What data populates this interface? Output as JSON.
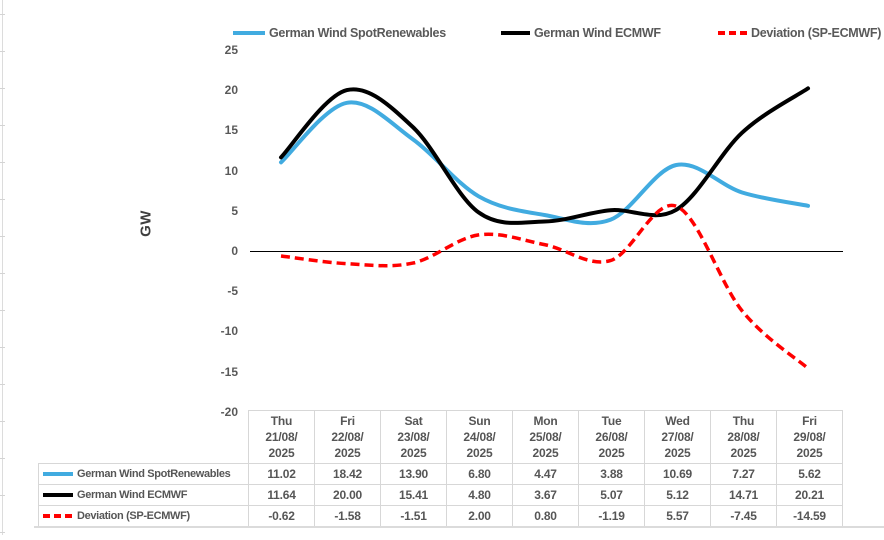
{
  "chart_data": {
    "type": "line",
    "title": "",
    "ylabel": "GW",
    "ylim": [
      -20,
      25
    ],
    "yticks": [
      25,
      20,
      15,
      10,
      5,
      0,
      -5,
      -10,
      -15,
      -20
    ],
    "grid": false,
    "legend_position": "top",
    "line_style_note": "smoothed lines",
    "categories": [
      [
        "Thu",
        "21/08/",
        "2025"
      ],
      [
        "Fri",
        "22/08/",
        "2025"
      ],
      [
        "Sat",
        "23/08/",
        "2025"
      ],
      [
        "Sun",
        "24/08/",
        "2025"
      ],
      [
        "Mon",
        "25/08/",
        "2025"
      ],
      [
        "Tue",
        "26/08/",
        "2025"
      ],
      [
        "Wed",
        "27/08/",
        "2025"
      ],
      [
        "Thu",
        "28/08/",
        "2025"
      ],
      [
        "Fri",
        "29/08/",
        "2025"
      ]
    ],
    "series": [
      {
        "name": "German Wind SpotRenewables",
        "color": "#41ABE0",
        "style": "solid",
        "values": [
          "11.02",
          "18.42",
          "13.90",
          "6.80",
          "4.47",
          "3.88",
          "10.69",
          "7.27",
          "5.62"
        ]
      },
      {
        "name": "German Wind ECMWF",
        "color": "#000000",
        "style": "solid",
        "values": [
          "11.64",
          "20.00",
          "15.41",
          "4.80",
          "3.67",
          "5.07",
          "5.12",
          "14.71",
          "20.21"
        ]
      },
      {
        "name": "Deviation (SP-ECMWF)",
        "color": "#FF0000",
        "style": "dashed",
        "values": [
          "-0.62",
          "-1.58",
          "-1.51",
          "2.00",
          "0.80",
          "-1.19",
          "5.57",
          "-7.45",
          "-14.59"
        ]
      }
    ]
  },
  "axis_color": "#000000",
  "border_color": "#dbdbdb"
}
